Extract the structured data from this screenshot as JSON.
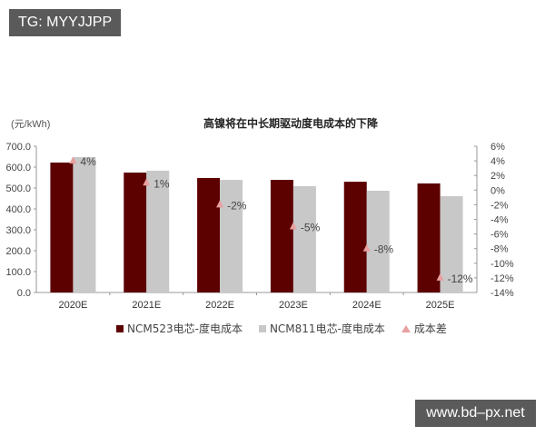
{
  "watermarks": {
    "top_left": "TG: MYYJJPP",
    "bottom_right": "www.bd–px.net"
  },
  "colors": {
    "ncm523": "#5c0000",
    "ncm811": "#c8c8c8",
    "diff_marker": "#e8a0a0",
    "axis": "#999999"
  },
  "chart_data": {
    "type": "bar",
    "title": "高镍将在中长期驱动度电成本的下降",
    "ylabel": "(元/kWh)",
    "y2label": "",
    "xlabel": "",
    "categories": [
      "2020E",
      "2021E",
      "2022E",
      "2023E",
      "2024E",
      "2025E"
    ],
    "series": [
      {
        "name": "NCM523电芯-度电成本",
        "type": "bar",
        "axis": "left",
        "values": [
          622,
          574,
          548,
          539,
          530,
          522
        ]
      },
      {
        "name": "NCM811电芯-度电成本",
        "type": "bar",
        "axis": "left",
        "values": [
          648,
          583,
          539,
          509,
          487,
          461
        ]
      },
      {
        "name": "成本差",
        "type": "scatter",
        "axis": "right",
        "marker": "triangle",
        "values": [
          4,
          1,
          -2,
          -5,
          -8,
          -12
        ],
        "labels": [
          "4%",
          "1%",
          "-2%",
          "-5%",
          "-8%",
          "-12%"
        ]
      }
    ],
    "ylim": [
      0,
      700
    ],
    "yticks": [
      "0.0",
      "100.0",
      "200.0",
      "300.0",
      "400.0",
      "500.0",
      "600.0",
      "700.0"
    ],
    "y2lim": [
      -14,
      6
    ],
    "y2ticks": [
      "-14%",
      "-12%",
      "-10%",
      "-8%",
      "-6%",
      "-4%",
      "-2%",
      "0%",
      "2%",
      "4%",
      "6%"
    ],
    "grid": false,
    "legend_position": "bottom"
  }
}
